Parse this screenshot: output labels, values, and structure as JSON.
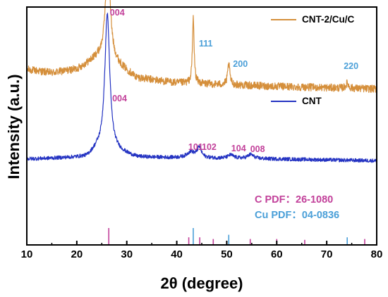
{
  "chart_data": {
    "type": "line",
    "xlabel": "2θ (degree)",
    "ylabel": "Intensity (a.u.)",
    "xlim": [
      10,
      80
    ],
    "xticks": [
      "10",
      "20",
      "30",
      "40",
      "50",
      "60",
      "70",
      "80"
    ],
    "y_ticks_shown": false,
    "grid": false,
    "legend_placement": "right, beside each curve",
    "series": [
      {
        "name": "CNT-2/Cu/C",
        "color": "#D58F3B",
        "baseline": 0.86,
        "noise": 0.045,
        "background": [
          [
            10,
            0.2
          ],
          [
            15,
            0.16
          ],
          [
            20,
            0.2
          ],
          [
            24,
            0.33
          ],
          [
            27,
            0.3
          ],
          [
            32,
            0.1
          ],
          [
            40,
            0.04
          ],
          [
            60,
            0.0
          ],
          [
            80,
            -0.03
          ]
        ],
        "peaks": [
          {
            "pos": 26.2,
            "height": 1.25,
            "width": 0.55
          },
          {
            "pos": 43.3,
            "height": 0.78,
            "width": 0.2
          },
          {
            "pos": 50.4,
            "height": 0.25,
            "width": 0.25
          },
          {
            "pos": 74.1,
            "height": 0.06,
            "width": 0.3
          }
        ],
        "peak_labels": [
          {
            "text": "004",
            "x": 26.2,
            "color": "#C2409A"
          },
          {
            "text": "111",
            "x": 43.3,
            "color": "#4A9FD8"
          },
          {
            "text": "200",
            "x": 50.4,
            "color": "#4A9FD8"
          },
          {
            "text": "220",
            "x": 74.1,
            "color": "#4A9FD8"
          }
        ]
      },
      {
        "name": "CNT",
        "color": "#2433C2",
        "baseline": 0.0,
        "noise": 0.022,
        "background": [
          [
            10,
            0.0
          ],
          [
            22,
            0.02
          ],
          [
            24,
            0.1
          ],
          [
            28,
            0.08
          ],
          [
            32,
            0.02
          ],
          [
            60,
            0.0
          ],
          [
            80,
            -0.02
          ]
        ],
        "peaks": [
          {
            "pos": 26.1,
            "height": 1.63,
            "width": 0.6
          },
          {
            "pos": 42.8,
            "height": 0.07,
            "width": 0.9
          },
          {
            "pos": 44.5,
            "height": 0.12,
            "width": 0.5
          },
          {
            "pos": 50.8,
            "height": 0.04,
            "width": 0.7
          },
          {
            "pos": 54.8,
            "height": 0.05,
            "width": 0.7
          }
        ],
        "peak_labels": [
          {
            "text": "004",
            "x": 26.1,
            "color": "#C2409A"
          },
          {
            "text": "101",
            "x": 42.3,
            "color": "#C2409A"
          },
          {
            "text": "102",
            "x": 45.0,
            "color": "#C2409A"
          },
          {
            "text": "104",
            "x": 50.9,
            "color": "#C2409A"
          },
          {
            "text": "008",
            "x": 54.7,
            "color": "#C2409A"
          }
        ]
      }
    ],
    "reference_patterns": [
      {
        "label": "C PDF：26-1080",
        "color": "#C2409A",
        "lines": [
          {
            "x": 26.4,
            "rel": 1.0
          },
          {
            "x": 42.4,
            "rel": 0.45
          },
          {
            "x": 44.6,
            "rel": 0.45
          },
          {
            "x": 47.3,
            "rel": 0.35
          },
          {
            "x": 54.7,
            "rel": 0.35
          },
          {
            "x": 60.0,
            "rel": 0.35
          },
          {
            "x": 65.6,
            "rel": 0.3
          },
          {
            "x": 77.6,
            "rel": 0.35
          }
        ]
      },
      {
        "label": "Cu PDF：04-0836",
        "color": "#4A9FD8",
        "lines": [
          {
            "x": 43.3,
            "rel": 1.0
          },
          {
            "x": 50.4,
            "rel": 0.6
          },
          {
            "x": 74.1,
            "rel": 0.45
          }
        ]
      }
    ]
  }
}
